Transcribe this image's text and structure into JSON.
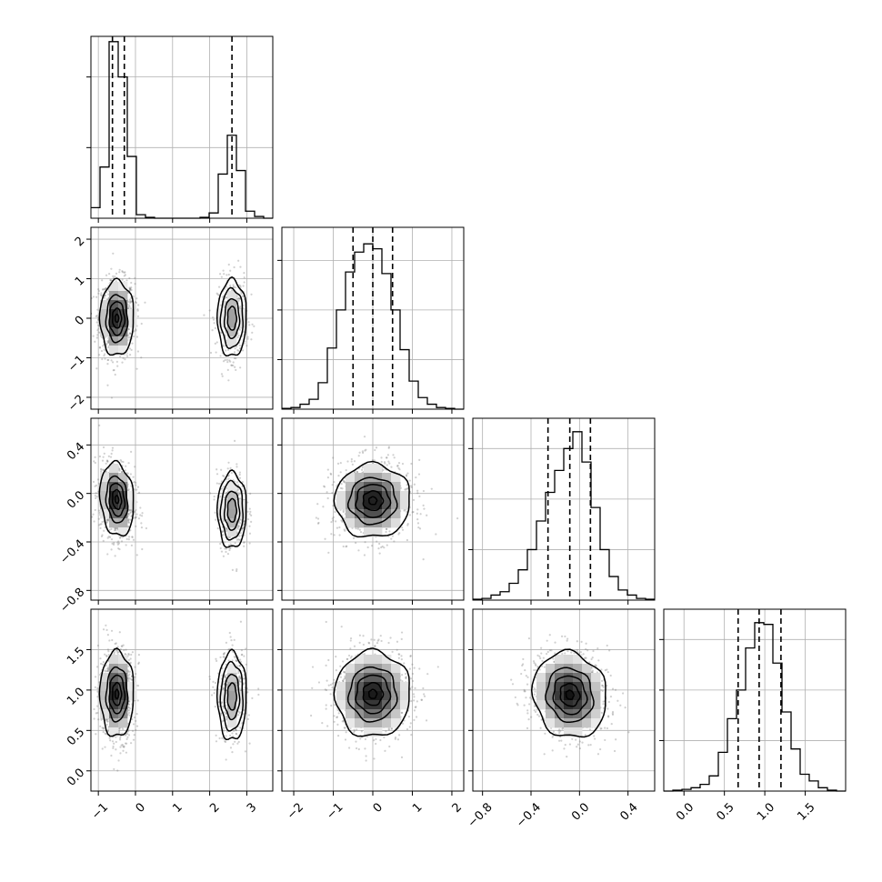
{
  "chart_data": {
    "type": "corner",
    "grid": true,
    "parameters": [
      {
        "range": [
          -1.2,
          3.7
        ],
        "ticks": [
          "-1",
          "0",
          "1",
          "2",
          "3"
        ],
        "tick_values": [
          -1,
          0,
          1,
          2,
          3
        ],
        "quantiles": [
          -0.62,
          -0.3,
          2.6
        ],
        "hist_edges": [
          -1.2,
          -0.955,
          -0.71,
          -0.465,
          -0.22,
          0.025,
          0.27,
          0.515,
          0.76,
          1.005,
          1.25,
          1.495,
          1.74,
          1.985,
          2.23,
          2.475,
          2.72,
          2.965,
          3.21,
          3.455,
          3.7
        ],
        "hist_counts": [
          0.06,
          0.29,
          1.0,
          0.8,
          0.35,
          0.02,
          0.005,
          0,
          0,
          0,
          0,
          0,
          0.005,
          0.03,
          0.25,
          0.47,
          0.27,
          0.04,
          0.01,
          0
        ],
        "hist_ticks": [
          0.4,
          0.8
        ],
        "hist_ymax": 1.03
      },
      {
        "range": [
          -2.3,
          2.3
        ],
        "ticks": [
          "-2",
          "-1",
          "0",
          "1",
          "2"
        ],
        "tick_values": [
          -2,
          -1,
          0,
          1,
          2
        ],
        "quantiles": [
          -0.5,
          0.0,
          0.5
        ],
        "hist_edges": [
          -2.3,
          -2.07,
          -1.84,
          -1.61,
          -1.38,
          -1.15,
          -0.92,
          -0.69,
          -0.46,
          -0.23,
          0.0,
          0.23,
          0.46,
          0.69,
          0.92,
          1.15,
          1.38,
          1.61,
          1.84,
          2.07,
          2.3
        ],
        "hist_counts": [
          0.005,
          0.01,
          0.03,
          0.06,
          0.16,
          0.37,
          0.6,
          0.83,
          0.95,
          1.0,
          0.97,
          0.82,
          0.6,
          0.36,
          0.17,
          0.07,
          0.03,
          0.01,
          0.005,
          0
        ],
        "hist_ticks": [
          0.3,
          0.6,
          0.9
        ],
        "hist_ymax": 1.1
      },
      {
        "range": [
          -0.88,
          0.62
        ],
        "ticks": [
          "-0.8",
          "-0.4",
          "0.0",
          "0.4"
        ],
        "tick_values": [
          -0.8,
          -0.4,
          0.0,
          0.4
        ],
        "quantiles": [
          -0.26,
          -0.08,
          0.09
        ],
        "hist_edges": [
          -0.88,
          -0.805,
          -0.73,
          -0.655,
          -0.58,
          -0.505,
          -0.43,
          -0.355,
          -0.28,
          -0.205,
          -0.13,
          -0.055,
          0.02,
          0.095,
          0.17,
          0.245,
          0.32,
          0.395,
          0.47,
          0.545,
          0.62
        ],
        "hist_counts": [
          0.005,
          0.01,
          0.03,
          0.05,
          0.1,
          0.18,
          0.3,
          0.47,
          0.64,
          0.77,
          0.9,
          1.0,
          0.82,
          0.55,
          0.3,
          0.14,
          0.06,
          0.03,
          0.01,
          0.005
        ],
        "hist_ticks": [
          0.3,
          0.6,
          0.9
        ],
        "hist_ymax": 1.08
      },
      {
        "range": [
          -0.25,
          2.0
        ],
        "ticks": [
          "0.0",
          "0.5",
          "1.0",
          "1.5"
        ],
        "tick_values": [
          0.0,
          0.5,
          1.0,
          1.5
        ],
        "quantiles": [
          0.67,
          0.93,
          1.2
        ],
        "hist_edges": [
          -0.25,
          -0.1375,
          -0.025,
          0.0875,
          0.2,
          0.3125,
          0.425,
          0.5375,
          0.65,
          0.7625,
          0.875,
          0.9875,
          1.1,
          1.2125,
          1.325,
          1.4375,
          1.55,
          1.6625,
          1.775,
          1.8875,
          2.0
        ],
        "hist_counts": [
          0.0,
          0.005,
          0.01,
          0.02,
          0.04,
          0.09,
          0.23,
          0.43,
          0.6,
          0.85,
          1.0,
          0.99,
          0.76,
          0.47,
          0.25,
          0.1,
          0.06,
          0.02,
          0.005,
          0
        ],
        "hist_ticks": [
          0.3,
          0.6,
          0.9
        ],
        "hist_ymax": 1.08
      }
    ],
    "pair_panels": [
      {
        "x": 0,
        "y": 1,
        "clusters": [
          {
            "cx": -0.5,
            "cy": 0.0,
            "sx": 0.24,
            "sy": 0.5,
            "rho": 0.0,
            "weight": 1.0
          },
          {
            "cx": 2.6,
            "cy": 0.0,
            "sx": 0.2,
            "sy": 0.5,
            "rho": 0.0,
            "weight": 0.5
          }
        ]
      },
      {
        "x": 0,
        "y": 2,
        "clusters": [
          {
            "cx": -0.5,
            "cy": -0.05,
            "sx": 0.24,
            "sy": 0.16,
            "rho": -0.15,
            "weight": 1.0
          },
          {
            "cx": 2.6,
            "cy": -0.14,
            "sx": 0.2,
            "sy": 0.16,
            "rho": 0.0,
            "weight": 0.5
          }
        ]
      },
      {
        "x": 1,
        "y": 2,
        "clusters": [
          {
            "cx": 0.0,
            "cy": -0.06,
            "sx": 0.5,
            "sy": 0.16,
            "rho": 0.0,
            "weight": 1.0
          }
        ]
      },
      {
        "x": 0,
        "y": 3,
        "clusters": [
          {
            "cx": -0.5,
            "cy": 0.95,
            "sx": 0.24,
            "sy": 0.28,
            "rho": 0.0,
            "weight": 1.0
          },
          {
            "cx": 2.6,
            "cy": 0.92,
            "sx": 0.2,
            "sy": 0.28,
            "rho": 0.0,
            "weight": 0.5
          }
        ]
      },
      {
        "x": 1,
        "y": 3,
        "clusters": [
          {
            "cx": 0.0,
            "cy": 0.95,
            "sx": 0.5,
            "sy": 0.28,
            "rho": 0.0,
            "weight": 1.0
          }
        ]
      },
      {
        "x": 2,
        "y": 3,
        "clusters": [
          {
            "cx": -0.08,
            "cy": 0.94,
            "sx": 0.16,
            "sy": 0.28,
            "rho": -0.1,
            "weight": 1.0
          }
        ]
      }
    ],
    "colors": {
      "axes": "#000000",
      "grid": "#b0b0b0",
      "points": "#777777",
      "density_dark": "#000000",
      "density_light": "#ffffff"
    }
  }
}
